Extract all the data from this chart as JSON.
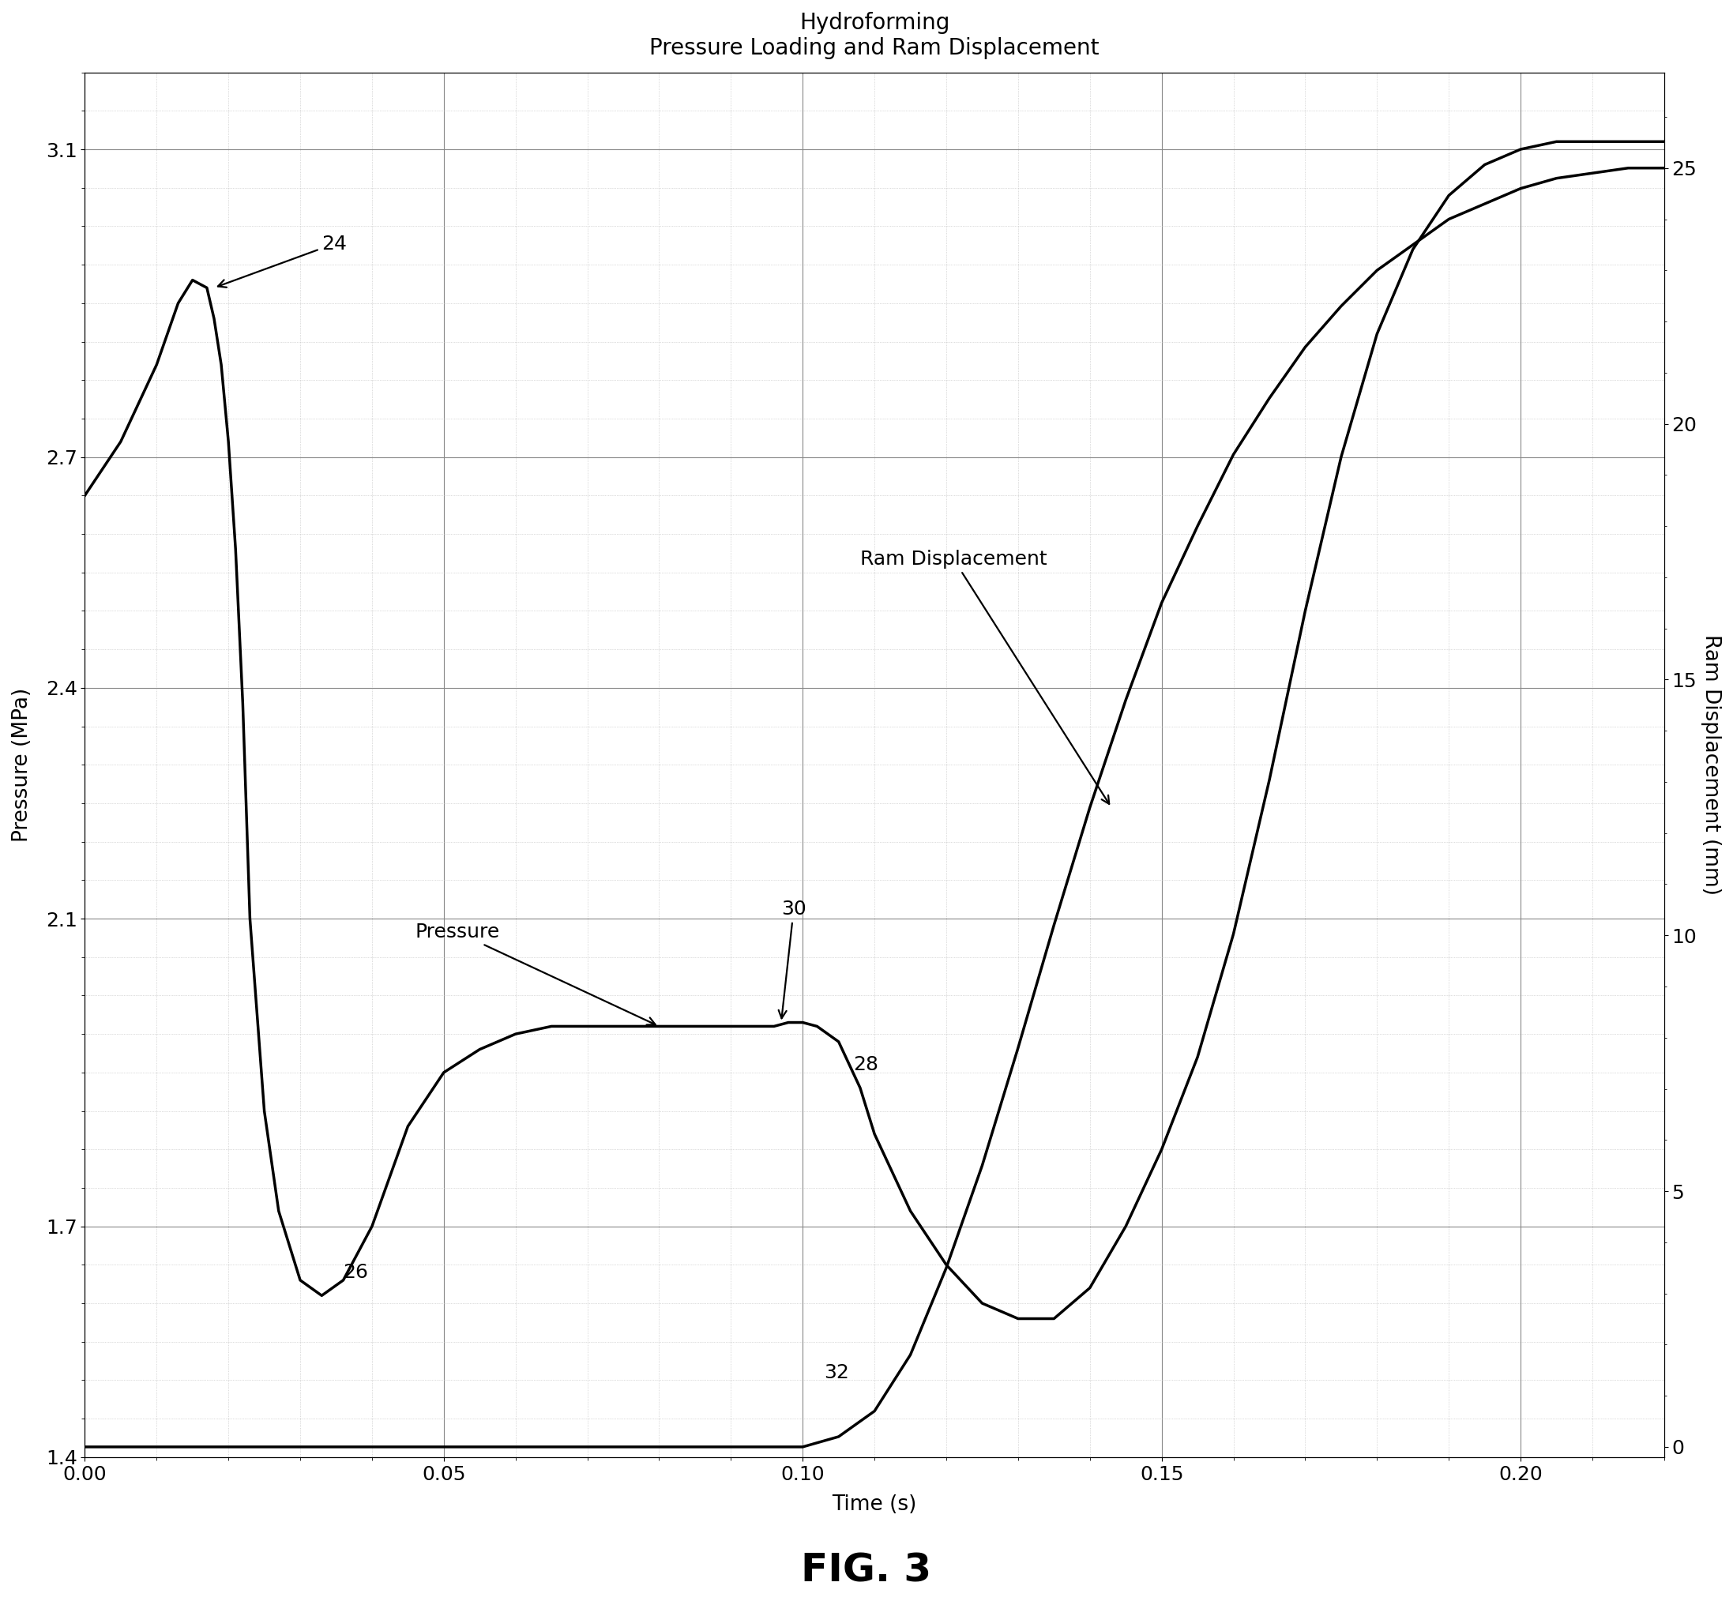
{
  "title_line1": "Hydroforming",
  "title_line2": "Pressure Loading and Ram Displacement",
  "xlabel": "Time (s)",
  "ylabel_left": "Pressure (MPa)",
  "ylabel_right": "Ram Displacement (mm)",
  "fig_label": "FIG. 3",
  "pressure_x": [
    0.0,
    0.005,
    0.01,
    0.013,
    0.015,
    0.017,
    0.018,
    0.019,
    0.02,
    0.021,
    0.022,
    0.023,
    0.025,
    0.027,
    0.03,
    0.033,
    0.036,
    0.04,
    0.045,
    0.05,
    0.055,
    0.06,
    0.065,
    0.07,
    0.075,
    0.08,
    0.085,
    0.09,
    0.093,
    0.096,
    0.098,
    0.1,
    0.102,
    0.105,
    0.108,
    0.11,
    0.115,
    0.12,
    0.125,
    0.13,
    0.135,
    0.14,
    0.145,
    0.15,
    0.155,
    0.16,
    0.165,
    0.17,
    0.175,
    0.18,
    0.185,
    0.19,
    0.195,
    0.2,
    0.205,
    0.21,
    0.215,
    0.22
  ],
  "pressure_y": [
    2.65,
    2.72,
    2.82,
    2.9,
    2.93,
    2.92,
    2.88,
    2.82,
    2.72,
    2.58,
    2.38,
    2.1,
    1.85,
    1.72,
    1.63,
    1.61,
    1.63,
    1.7,
    1.83,
    1.9,
    1.93,
    1.95,
    1.96,
    1.96,
    1.96,
    1.96,
    1.96,
    1.96,
    1.96,
    1.96,
    1.965,
    1.965,
    1.96,
    1.94,
    1.88,
    1.82,
    1.72,
    1.65,
    1.6,
    1.58,
    1.58,
    1.62,
    1.7,
    1.8,
    1.92,
    2.08,
    2.28,
    2.5,
    2.7,
    2.86,
    2.97,
    3.04,
    3.08,
    3.1,
    3.11,
    3.11,
    3.11,
    3.11
  ],
  "ram_x": [
    0.0,
    0.01,
    0.02,
    0.03,
    0.04,
    0.05,
    0.06,
    0.07,
    0.08,
    0.09,
    0.095,
    0.1,
    0.105,
    0.11,
    0.115,
    0.12,
    0.125,
    0.13,
    0.135,
    0.14,
    0.145,
    0.15,
    0.155,
    0.16,
    0.165,
    0.17,
    0.175,
    0.18,
    0.185,
    0.19,
    0.195,
    0.2,
    0.205,
    0.21,
    0.215,
    0.22
  ],
  "ram_y": [
    0.0,
    0.0,
    0.0,
    0.0,
    0.0,
    0.0,
    0.0,
    0.0,
    0.0,
    0.0,
    0.0,
    0.0,
    0.2,
    0.7,
    1.8,
    3.5,
    5.5,
    7.8,
    10.2,
    12.5,
    14.6,
    16.5,
    18.0,
    19.4,
    20.5,
    21.5,
    22.3,
    23.0,
    23.5,
    24.0,
    24.3,
    24.6,
    24.8,
    24.9,
    25.0,
    25.0
  ],
  "xlim": [
    0.0,
    0.22
  ],
  "xticks": [
    0.0,
    0.05,
    0.1,
    0.15,
    0.2
  ],
  "ylim_left": [
    1.4,
    3.2
  ],
  "yticks_left": [
    1.4,
    1.7,
    2.1,
    2.4,
    2.7,
    3.1
  ],
  "ylim_right": [
    -0.2,
    26.87
  ],
  "yticks_right": [
    0,
    5,
    10,
    15,
    20,
    25
  ],
  "line_color": "#000000",
  "line_width": 2.5,
  "background_color": "#ffffff",
  "grid_major_color": "#888888",
  "grid_minor_color": "#bbbbbb",
  "title_fontsize": 20,
  "axis_label_fontsize": 19,
  "tick_fontsize": 18,
  "annotation_fontsize": 18,
  "fig_label_fontsize": 36
}
